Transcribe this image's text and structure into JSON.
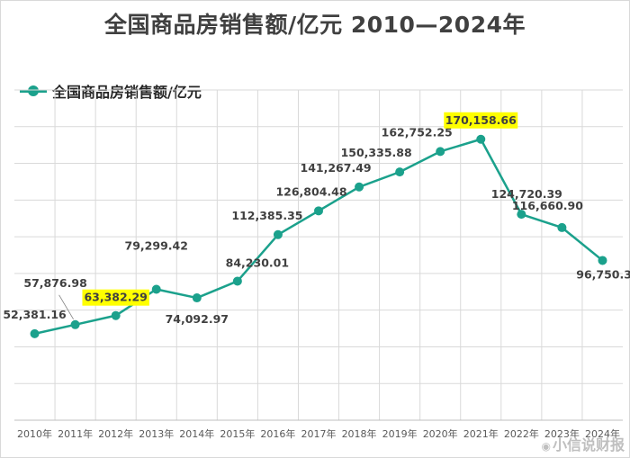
{
  "chart_data": {
    "type": "line",
    "title": "全国商品房销售额/亿元 2010—2024年",
    "xlabel": "",
    "ylabel": "",
    "categories": [
      "2010年",
      "2011年",
      "2012年",
      "2013年",
      "2014年",
      "2015年",
      "2016年",
      "2017年",
      "2018年",
      "2019年",
      "2020年",
      "2021年",
      "2022年",
      "2023年",
      "2024年"
    ],
    "series": [
      {
        "name": "全国商品房销售额/亿元",
        "values": [
          52381.16,
          57876.98,
          63382.29,
          79299.42,
          74092.97,
          84230.01,
          112385.35,
          126804.48,
          141267.49,
          150335.88,
          162752.25,
          170158.66,
          124720.39,
          116660.9,
          96750.33
        ],
        "labels": [
          "52,381.16",
          "57,876.98",
          "63,382.29",
          "79,299.42",
          "74,092.97",
          "84,230.01",
          "112,385.35",
          "126,804.48",
          "141,267.49",
          "150,335.88",
          "162,752.25",
          "170,158.66",
          "124,720.39",
          "116,660.90",
          "96,750.33"
        ],
        "highlighted_labels": [
          "2012年",
          "2021年"
        ]
      }
    ],
    "ylim": [
      0,
      200000
    ],
    "grid": true,
    "legend_position": "top-left",
    "colors": {
      "line": "#1ba18c",
      "highlight": "#ffff00",
      "grid": "#d9d9d9",
      "label_text": "#404040"
    }
  },
  "watermark": {
    "icon": "weibo-icon",
    "text": "小信说财报"
  }
}
